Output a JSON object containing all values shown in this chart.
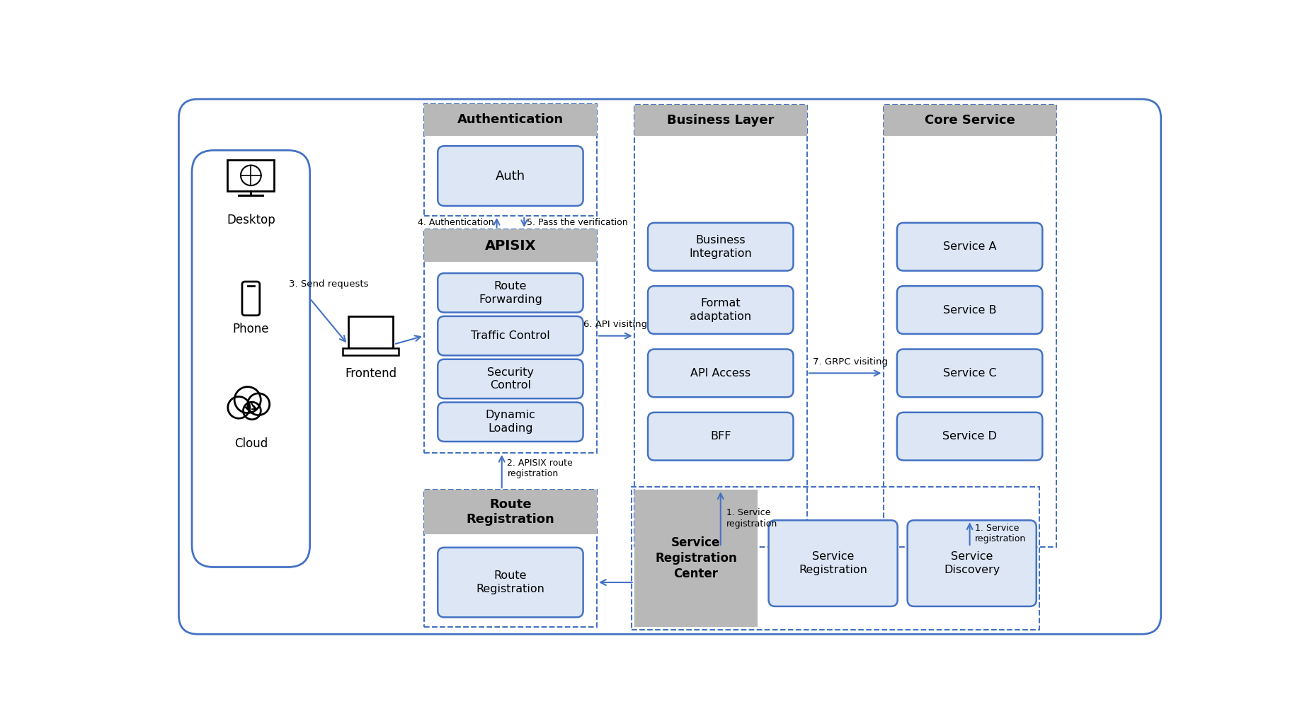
{
  "bg_color": "#ffffff",
  "client_border": "#4472c4",
  "box_fill": "#dce6f5",
  "box_stroke": "#4472c4",
  "header_fill": "#b8b8b8",
  "dashed_color": "#4472c4",
  "arrow_color": "#4472c4",
  "text_black": "#000000",
  "outer_border": "#4472c4",
  "apisix_boxes": [
    "Route\nForwarding",
    "Traffic Control",
    "Security\nControl",
    "Dynamic\nLoading"
  ],
  "business_boxes": [
    "Business\nIntegration",
    "Format\nadaptation",
    "API Access",
    "BFF"
  ],
  "core_boxes": [
    "Service A",
    "Service B",
    "Service C",
    "Service D"
  ]
}
